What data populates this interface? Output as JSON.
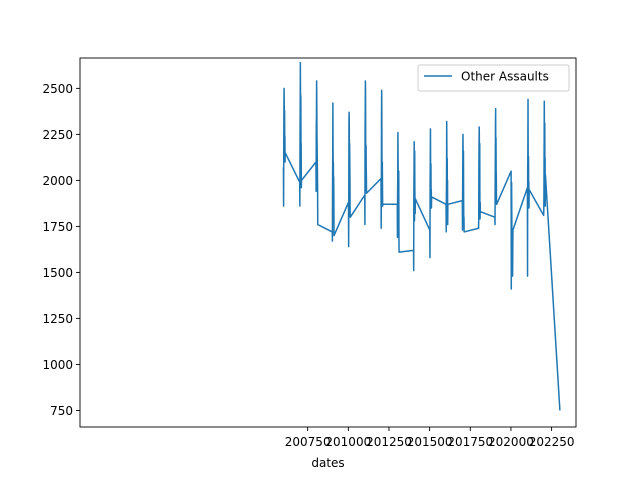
{
  "chart_data": {
    "type": "line",
    "title": "",
    "xlabel": "dates",
    "ylabel": "",
    "xlim": [
      199350,
      202400
    ],
    "ylim": [
      660,
      2665
    ],
    "xticks": [
      200750,
      201000,
      201250,
      201500,
      201750,
      202000,
      202250
    ],
    "xtick_labels": [
      "200750",
      "201000",
      "201250",
      "201500",
      "201750",
      "202000",
      "202250"
    ],
    "yticks": [
      750,
      1000,
      1250,
      1500,
      1750,
      2000,
      2250,
      2500
    ],
    "ytick_labels": [
      "750",
      "1000",
      "1250",
      "1500",
      "1750",
      "2000",
      "2250",
      "2500"
    ],
    "grid": false,
    "legend_position": "upper right",
    "series": [
      {
        "name": "Other Assaults",
        "color": "#1f77b4",
        "x": [
          200601,
          200602,
          200603,
          200604,
          200605,
          200606,
          200607,
          200608,
          200609,
          200610,
          200611,
          200612,
          200701,
          200702,
          200703,
          200704,
          200705,
          200706,
          200707,
          200708,
          200709,
          200710,
          200711,
          200712,
          200801,
          200802,
          200803,
          200804,
          200805,
          200806,
          200807,
          200808,
          200809,
          200810,
          200811,
          200812,
          200901,
          200902,
          200903,
          200904,
          200905,
          200906,
          200907,
          200908,
          200909,
          200910,
          200911,
          200912,
          201001,
          201002,
          201003,
          201004,
          201005,
          201006,
          201007,
          201008,
          201009,
          201010,
          201011,
          201012,
          201101,
          201102,
          201103,
          201104,
          201105,
          201106,
          201107,
          201108,
          201109,
          201110,
          201111,
          201112,
          201201,
          201202,
          201203,
          201204,
          201205,
          201206,
          201207,
          201208,
          201209,
          201210,
          201211,
          201212,
          201301,
          201302,
          201303,
          201304,
          201305,
          201306,
          201307,
          201308,
          201309,
          201310,
          201311,
          201312,
          201401,
          201402,
          201403,
          201404,
          201405,
          201406,
          201407,
          201408,
          201409,
          201410,
          201411,
          201412,
          201501,
          201502,
          201503,
          201504,
          201505,
          201506,
          201507,
          201508,
          201509,
          201510,
          201511,
          201512,
          201601,
          201602,
          201603,
          201604,
          201605,
          201606,
          201607,
          201608,
          201609,
          201610,
          201611,
          201612,
          201701,
          201702,
          201703,
          201704,
          201705,
          201706,
          201707,
          201708,
          201709,
          201710,
          201711,
          201712,
          201801,
          201802,
          201803,
          201804,
          201805,
          201806,
          201807,
          201808,
          201809,
          201810,
          201811,
          201812,
          201901,
          201902,
          201903,
          201904,
          201905,
          201906,
          201907,
          201908,
          201909,
          201910,
          201911,
          201912,
          202001,
          202002,
          202003,
          202004,
          202005,
          202006,
          202007,
          202008,
          202009,
          202010,
          202011,
          202012,
          202101,
          202102,
          202103,
          202104,
          202105,
          202106,
          202107,
          202108,
          202109,
          202110,
          202111,
          202112,
          202201,
          202202,
          202203,
          202204,
          202205,
          202206,
          202207,
          202208,
          202209,
          202210,
          202211,
          202212,
          202301
        ],
        "y": [
          2070,
          1860,
          2190,
          2390,
          2500,
          2410,
          2290,
          2380,
          2150,
          2240,
          2100,
          2150,
          1990,
          1860,
          2250,
          2380,
          2640,
          2450,
          2260,
          2460,
          2130,
          2200,
          1960,
          2000,
          2100,
          1940,
          2300,
          2340,
          2540,
          2430,
          2260,
          2200,
          2100,
          2050,
          1960,
          1760,
          1720,
          1670,
          1970,
          2120,
          2420,
          2170,
          2050,
          2100,
          1880,
          2020,
          1900,
          1700,
          1880,
          1640,
          1950,
          2330,
          2370,
          2270,
          2020,
          2200,
          2100,
          2000,
          1830,
          1800,
          1920,
          1760,
          2260,
          2380,
          2540,
          2470,
          2080,
          2160,
          2190,
          2060,
          2020,
          1930,
          2010,
          1740,
          1900,
          2330,
          2490,
          2370,
          2050,
          2000,
          2100,
          1980,
          1860,
          1870,
          1870,
          1690,
          1930,
          2010,
          2260,
          2110,
          1950,
          2010,
          1700,
          2050,
          1750,
          1610,
          1620,
          1510,
          1950,
          2040,
          2210,
          2120,
          1780,
          2160,
          1950,
          1870,
          1820,
          1900,
          1730,
          1580,
          1980,
          2130,
          2280,
          2070,
          1930,
          2090,
          1890,
          1950,
          1850,
          1910,
          1870,
          1720,
          1920,
          2010,
          2320,
          2160,
          1960,
          2120,
          1910,
          2000,
          1760,
          1870,
          1890,
          1730,
          1950,
          2100,
          2250,
          2150,
          1900,
          2160,
          1900,
          1760,
          1800,
          1720,
          1740,
          1800,
          2090,
          2220,
          2290,
          2180,
          1930,
          2200,
          1870,
          1790,
          1880,
          1830,
          1800,
          1760,
          1990,
          2140,
          2320,
          2390,
          1980,
          2230,
          2050,
          2020,
          1880,
          1870,
          2050,
          1410,
          1840,
          1990,
          1850,
          1670,
          1600,
          1660,
          1560,
          1480,
          1600,
          1730,
          1960,
          1480,
          2050,
          2160,
          2440,
          2070,
          1960,
          2130,
          1940,
          1990,
          1850,
          1950,
          1810,
          1840,
          1930,
          2180,
          2430,
          2220,
          2010,
          2310,
          2000,
          2120,
          1860,
          2030,
          750
        ]
      }
    ]
  }
}
